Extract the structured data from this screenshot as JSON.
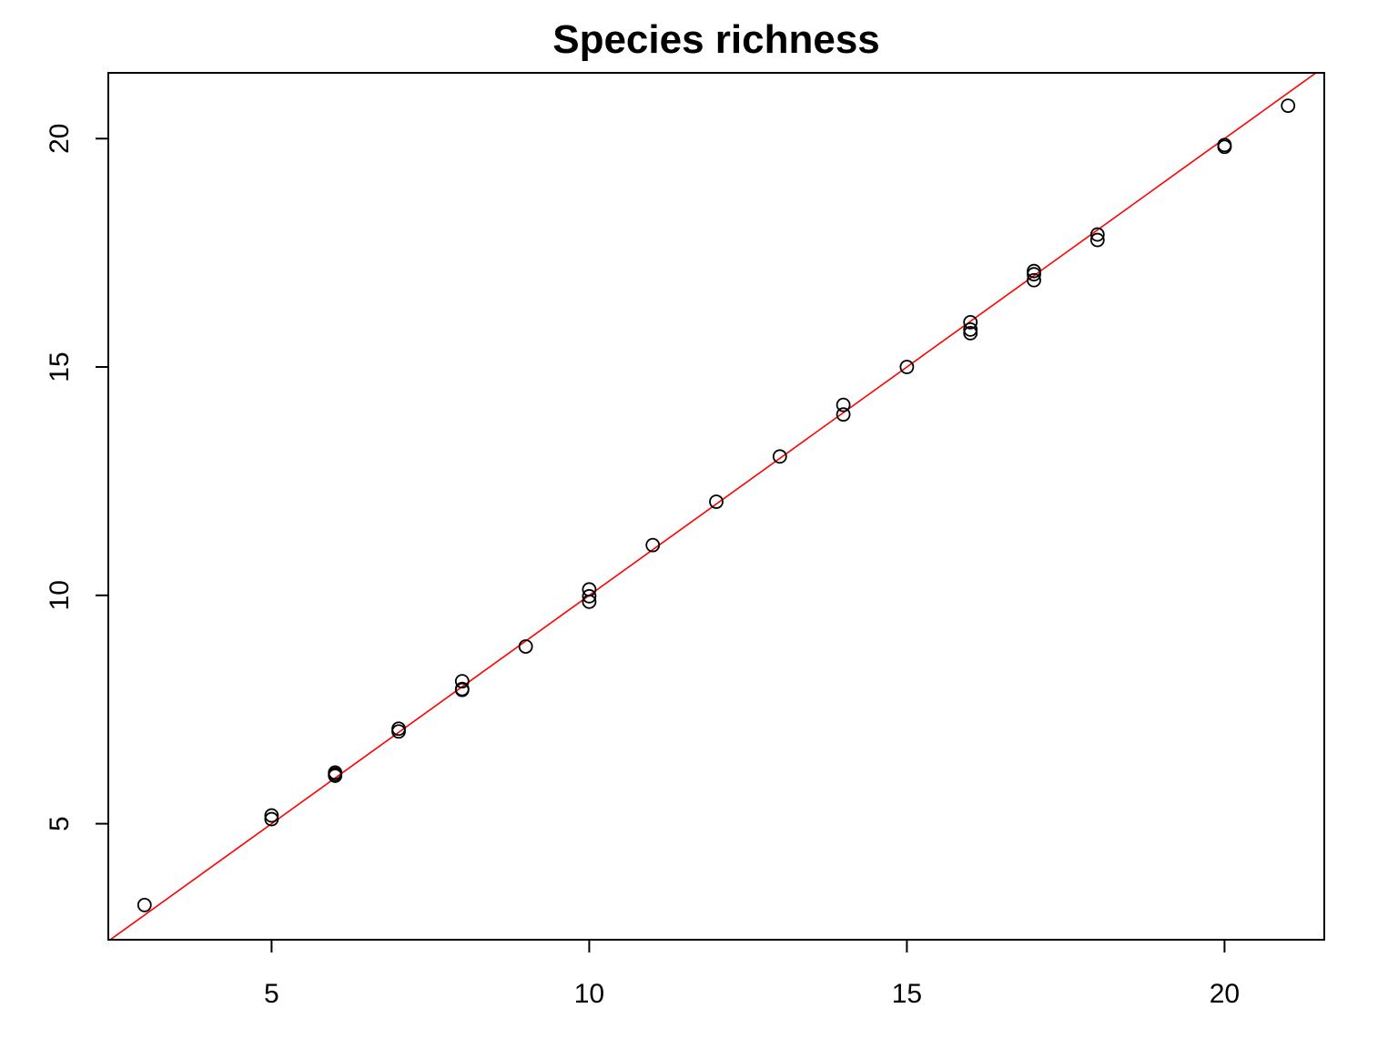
{
  "chart_data": {
    "type": "scatter",
    "title": "Species richness",
    "xlabel": "",
    "ylabel": "",
    "xlim": [
      2.43,
      21.57
    ],
    "ylim": [
      2.46,
      21.44
    ],
    "xticks": [
      "5",
      "10",
      "15",
      "20"
    ],
    "yticks": [
      "5",
      "10",
      "15",
      "20"
    ],
    "grid": false,
    "point_color": "#000000",
    "reference_line": {
      "type": "y = x",
      "color": "#ff0000",
      "intercept": 0,
      "slope": 1
    },
    "points": [
      {
        "x": 3,
        "y": 3.22
      },
      {
        "x": 5,
        "y": 5.18
      },
      {
        "x": 5,
        "y": 5.1
      },
      {
        "x": 6,
        "y": 6.12
      },
      {
        "x": 6,
        "y": 6.08
      },
      {
        "x": 6,
        "y": 6.05
      },
      {
        "x": 7,
        "y": 7.08
      },
      {
        "x": 7,
        "y": 7.02
      },
      {
        "x": 8,
        "y": 8.12
      },
      {
        "x": 8,
        "y": 7.95
      },
      {
        "x": 8,
        "y": 7.93
      },
      {
        "x": 9,
        "y": 8.88
      },
      {
        "x": 10,
        "y": 10.13
      },
      {
        "x": 10,
        "y": 9.98
      },
      {
        "x": 10,
        "y": 9.86
      },
      {
        "x": 11,
        "y": 11.1
      },
      {
        "x": 12,
        "y": 12.05
      },
      {
        "x": 13,
        "y": 13.04
      },
      {
        "x": 14,
        "y": 14.17
      },
      {
        "x": 14,
        "y": 13.96
      },
      {
        "x": 15,
        "y": 15
      },
      {
        "x": 16,
        "y": 15.98
      },
      {
        "x": 16,
        "y": 15.82
      },
      {
        "x": 16,
        "y": 15.74
      },
      {
        "x": 17,
        "y": 17.1
      },
      {
        "x": 17,
        "y": 17.03
      },
      {
        "x": 17,
        "y": 16.9
      },
      {
        "x": 18,
        "y": 17.9
      },
      {
        "x": 18,
        "y": 17.78
      },
      {
        "x": 20,
        "y": 19.86
      },
      {
        "x": 20,
        "y": 19.82
      },
      {
        "x": 21,
        "y": 20.72
      }
    ]
  }
}
